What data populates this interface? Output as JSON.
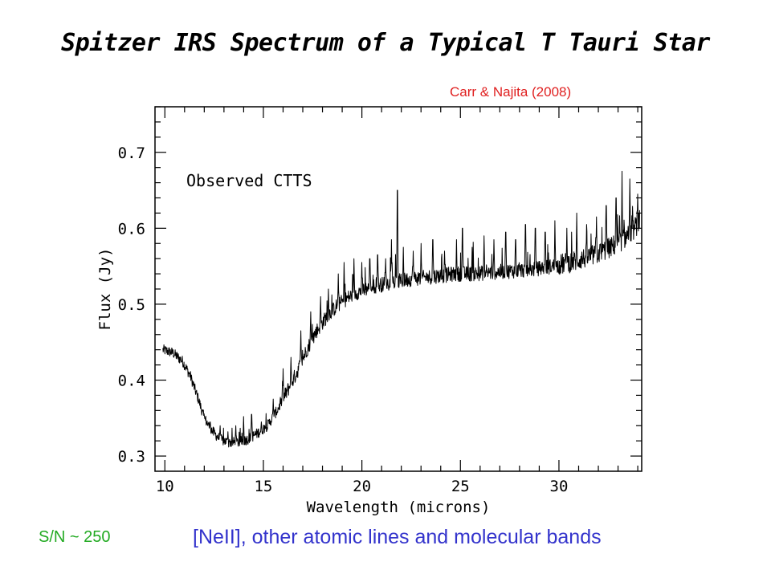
{
  "slide": {
    "title": "Spitzer IRS Spectrum of a Typical T Tauri Star",
    "citation": "Carr & Najita (2008)",
    "sn_label": "S/N ~ 250",
    "note": "[NeII], other atomic lines and molecular bands"
  },
  "chart_data": {
    "type": "line",
    "title": "",
    "xlabel": "Wavelength (microns)",
    "ylabel": "Flux (Jy)",
    "annotation": "Observed CTTS",
    "xlim": [
      9.5,
      34.2
    ],
    "ylim": [
      0.28,
      0.76
    ],
    "xticks": [
      10,
      15,
      20,
      25,
      30
    ],
    "yticks": [
      0.3,
      0.4,
      0.5,
      0.6,
      0.7
    ],
    "xtick_labels": [
      "10",
      "15",
      "20",
      "25",
      "30"
    ],
    "ytick_labels": [
      "0.3",
      "0.4",
      "0.5",
      "0.6",
      "0.7"
    ],
    "grid": false,
    "line_color": "#000000",
    "continuum": {
      "x": [
        9.9,
        10.4,
        10.9,
        11.3,
        11.7,
        12.0,
        12.4,
        12.8,
        13.2,
        13.7,
        14.2,
        14.7,
        15.2,
        15.7,
        16.2,
        16.7,
        17.2,
        17.7,
        18.2,
        18.7,
        19.2,
        19.7,
        20.2,
        20.7,
        21.2,
        21.7,
        22.2,
        22.7,
        23.2,
        23.7,
        24.2,
        24.7,
        25.2,
        25.7,
        26.2,
        26.7,
        27.2,
        27.7,
        28.2,
        28.7,
        29.2,
        29.7,
        30.2,
        30.7,
        31.2,
        31.7,
        32.2,
        32.7,
        33.2,
        33.7,
        34.1
      ],
      "y": [
        0.44,
        0.436,
        0.425,
        0.405,
        0.375,
        0.35,
        0.333,
        0.322,
        0.318,
        0.318,
        0.322,
        0.33,
        0.34,
        0.36,
        0.385,
        0.41,
        0.44,
        0.465,
        0.483,
        0.497,
        0.507,
        0.515,
        0.52,
        0.524,
        0.527,
        0.529,
        0.532,
        0.534,
        0.535,
        0.537,
        0.538,
        0.54,
        0.54,
        0.54,
        0.541,
        0.542,
        0.543,
        0.544,
        0.545,
        0.546,
        0.548,
        0.55,
        0.553,
        0.556,
        0.56,
        0.564,
        0.569,
        0.576,
        0.584,
        0.595,
        0.61
      ]
    },
    "emission_lines": {
      "x": [
        12.3,
        12.8,
        13.2,
        13.6,
        14.0,
        14.4,
        14.9,
        15.5,
        16.0,
        16.4,
        16.9,
        17.4,
        17.9,
        18.3,
        18.8,
        19.1,
        19.6,
        20.0,
        20.4,
        20.8,
        21.2,
        21.5,
        21.8,
        22.1,
        22.6,
        23.0,
        23.6,
        24.2,
        24.8,
        25.1,
        25.6,
        26.2,
        26.7,
        27.3,
        27.8,
        28.3,
        28.8,
        29.3,
        29.8,
        30.4,
        30.9,
        31.4,
        31.9,
        32.4,
        32.9,
        33.2,
        33.6,
        34.0
      ],
      "y": [
        0.345,
        0.34,
        0.332,
        0.34,
        0.352,
        0.355,
        0.345,
        0.375,
        0.415,
        0.43,
        0.465,
        0.49,
        0.51,
        0.52,
        0.54,
        0.555,
        0.56,
        0.555,
        0.56,
        0.565,
        0.56,
        0.585,
        0.65,
        0.575,
        0.57,
        0.58,
        0.585,
        0.57,
        0.585,
        0.6,
        0.575,
        0.59,
        0.585,
        0.595,
        0.585,
        0.605,
        0.6,
        0.595,
        0.61,
        0.6,
        0.62,
        0.605,
        0.615,
        0.63,
        0.64,
        0.675,
        0.665,
        0.645
      ]
    }
  }
}
